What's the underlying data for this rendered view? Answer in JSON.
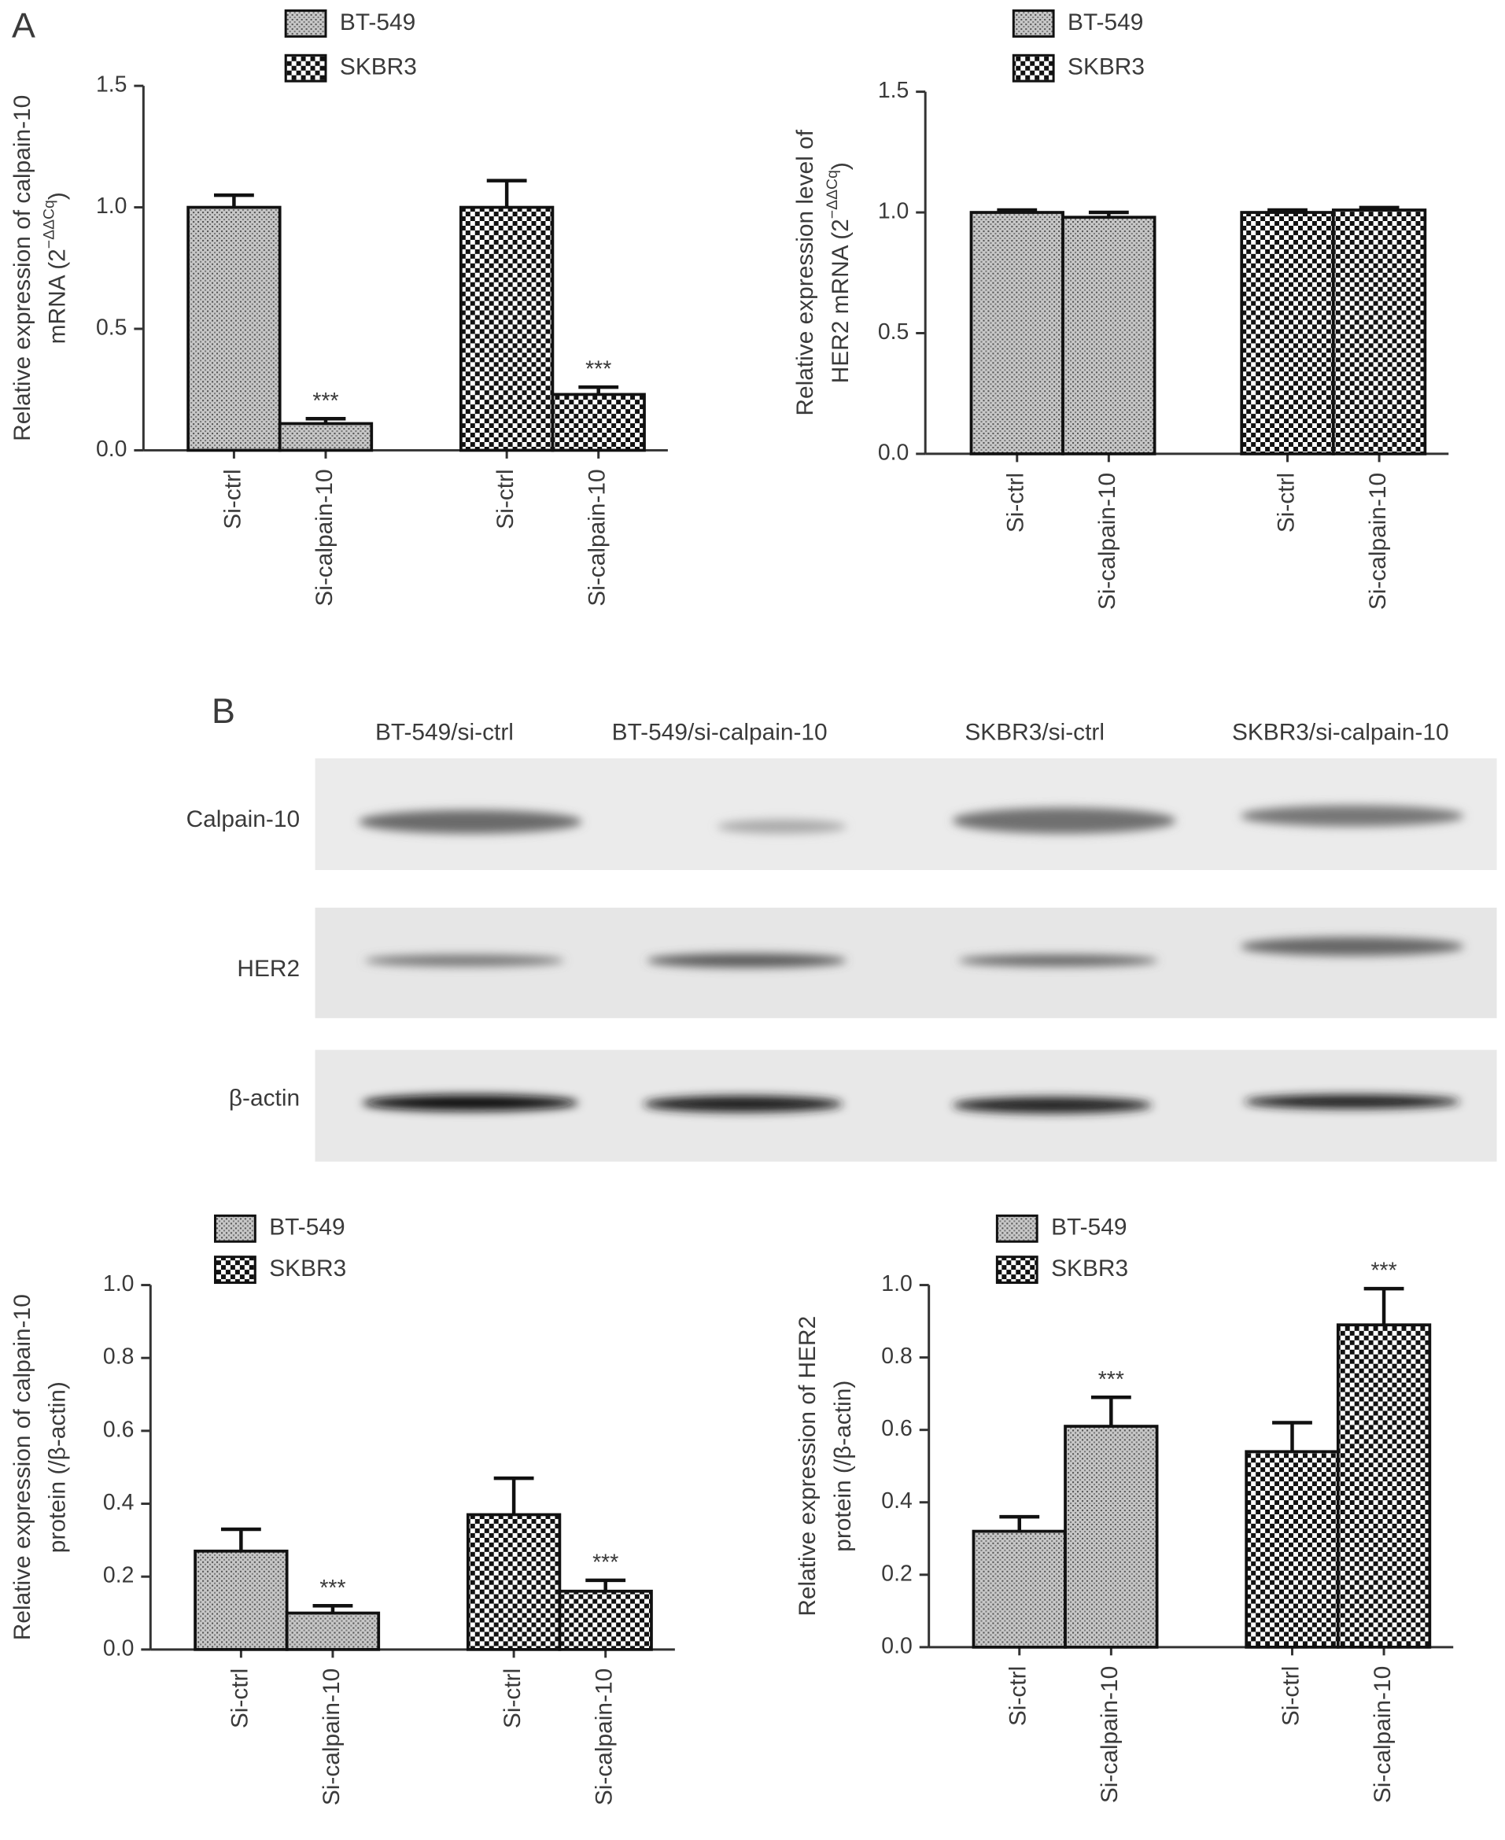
{
  "panel_labels": [
    "A",
    "B"
  ],
  "blot": {
    "lanes": [
      "BT-549/si-ctrl",
      "BT-549/si-calpain-10",
      "SKBR3/si-ctrl",
      "SKBR3/si-calpain-10"
    ],
    "rows": [
      "Calpain-10",
      "HER2",
      "β-actin"
    ]
  },
  "chart_data": [
    {
      "type": "bar",
      "ylabel": [
        [
          "Relative expression of calpain-10"
        ],
        [
          "mRNA (2",
          "−ΔΔCq",
          ")"
        ]
      ],
      "categories": [
        "Si-ctrl",
        "Si-calpain-10",
        "Si-ctrl",
        "Si-calpain-10"
      ],
      "ylim": [
        0,
        1.5
      ],
      "yticks": [
        {
          "value": 0,
          "label": "0.0"
        },
        0.5,
        {
          "value": 1,
          "label": "1.0"
        },
        1.5
      ],
      "series": [
        {
          "name": "BT-549",
          "pattern": "dots",
          "values": [
            1.0,
            0.11,
            null,
            null
          ],
          "errors": [
            0.05,
            0.02,
            null,
            null
          ],
          "annotations": [
            null,
            "***",
            null,
            null
          ]
        },
        {
          "name": "SKBR3",
          "pattern": "checks",
          "values": [
            null,
            null,
            1.0,
            0.23
          ],
          "errors": [
            null,
            null,
            0.11,
            0.03
          ],
          "annotations": [
            null,
            null,
            null,
            "***"
          ]
        }
      ]
    },
    {
      "type": "bar",
      "ylabel": [
        [
          "Relative expression level of"
        ],
        [
          "HER2 mRNA (2",
          "−ΔΔCq",
          ")"
        ]
      ],
      "categories": [
        "Si-ctrl",
        "Si-calpain-10",
        "Si-ctrl",
        "Si-calpain-10"
      ],
      "ylim": [
        0,
        1.5
      ],
      "yticks": [
        {
          "value": 0,
          "label": "0.0"
        },
        0.5,
        {
          "value": 1,
          "label": "1.0"
        },
        1.5
      ],
      "series": [
        {
          "name": "BT-549",
          "pattern": "dots",
          "values": [
            1.0,
            0.98,
            null,
            null
          ],
          "errors": [
            0.01,
            0.02,
            null,
            null
          ],
          "annotations": [
            null,
            null,
            null,
            null
          ]
        },
        {
          "name": "SKBR3",
          "pattern": "checks",
          "values": [
            null,
            null,
            1.0,
            1.01
          ],
          "errors": [
            null,
            null,
            0.01,
            0.01
          ],
          "annotations": [
            null,
            null,
            null,
            null
          ]
        }
      ]
    },
    {
      "type": "bar",
      "ylabel": [
        [
          "Relative expression of calpain-10"
        ],
        [
          "protein (/β-actin)"
        ]
      ],
      "categories": [
        "Si-ctrl",
        "Si-calpain-10",
        "Si-ctrl",
        "Si-calpain-10"
      ],
      "ylim": [
        0,
        1
      ],
      "yticks": [
        {
          "value": 0,
          "label": "0.0"
        },
        0.2,
        0.4,
        0.6,
        0.8,
        {
          "value": 1,
          "label": "1.0"
        }
      ],
      "series": [
        {
          "name": "BT-549",
          "pattern": "dots",
          "values": [
            0.27,
            0.1,
            null,
            null
          ],
          "errors": [
            0.06,
            0.02,
            null,
            null
          ],
          "annotations": [
            null,
            "***",
            null,
            null
          ]
        },
        {
          "name": "SKBR3",
          "pattern": "checks",
          "values": [
            null,
            null,
            0.37,
            0.16
          ],
          "errors": [
            null,
            null,
            0.1,
            0.03
          ],
          "annotations": [
            null,
            null,
            null,
            "***"
          ]
        }
      ]
    },
    {
      "type": "bar",
      "ylabel": [
        [
          "Relative expression of HER2"
        ],
        [
          "protein (/β-actin)"
        ]
      ],
      "categories": [
        "Si-ctrl",
        "Si-calpain-10",
        "Si-ctrl",
        "Si-calpain-10"
      ],
      "ylim": [
        0,
        1
      ],
      "yticks": [
        {
          "value": 0,
          "label": "0.0"
        },
        0.2,
        0.4,
        0.6,
        0.8,
        {
          "value": 1,
          "label": "1.0"
        }
      ],
      "series": [
        {
          "name": "BT-549",
          "pattern": "dots",
          "values": [
            0.32,
            0.61,
            null,
            null
          ],
          "errors": [
            0.04,
            0.08,
            null,
            null
          ],
          "annotations": [
            null,
            "***",
            null,
            null
          ]
        },
        {
          "name": "SKBR3",
          "pattern": "checks",
          "values": [
            null,
            null,
            0.54,
            0.89
          ],
          "errors": [
            null,
            null,
            0.08,
            0.1
          ],
          "annotations": [
            null,
            null,
            null,
            "***"
          ]
        }
      ]
    }
  ]
}
